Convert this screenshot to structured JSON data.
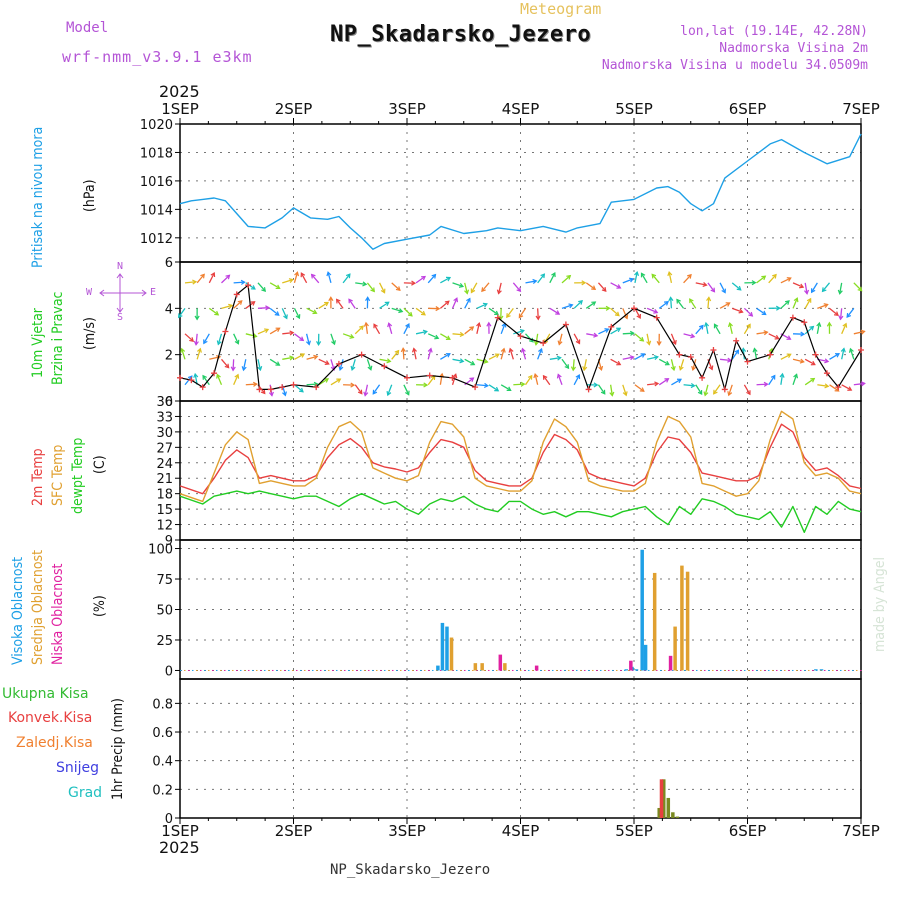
{
  "header": {
    "model_label": "Model",
    "model_name": "wrf-nmm_v3.9.1 e3km",
    "title": "NP_Skadarsko_Jezero",
    "subtitle": "Meteogram",
    "coords": "lon,lat (19.14E, 42.28N)",
    "elevation": "Nadmorska Visina 2m",
    "model_elevation": "Nadmorska Visina u modelu 34.0509m",
    "year_top": "2025",
    "year_bottom": "2025",
    "footer": "NP_Skadarsko_Jezero",
    "watermark": "made by Angel"
  },
  "colors": {
    "pressure": "#1ea0e6",
    "temp2m": "#e84040",
    "sfc_temp": "#e0a030",
    "dewpt": "#22cc22",
    "high_cloud": "#1ea0e6",
    "mid_cloud": "#e0a030",
    "low_cloud": "#e020a0",
    "total_precip": "#33bb33",
    "conv_precip": "#e84040",
    "frozen_precip": "#f08030",
    "snow": "#4040e0",
    "graupel": "#20c0c0"
  },
  "chart_data": [
    {
      "id": "pressure",
      "type": "line",
      "ylabel_lines": [
        "Pritisak na nivou mora"
      ],
      "unit": "(hPa)",
      "ylim": [
        1010.3,
        1020
      ],
      "yticks": [
        1012,
        1014,
        1016,
        1018,
        1020
      ],
      "x_days": [
        0,
        0.1,
        0.2,
        0.3,
        0.4,
        0.5,
        0.6,
        0.75,
        0.9,
        1.0,
        1.15,
        1.3,
        1.4,
        1.5,
        1.6,
        1.7,
        1.8,
        2.0,
        2.2,
        2.3,
        2.5,
        2.7,
        2.8,
        3.0,
        3.2,
        3.4,
        3.5,
        3.7,
        3.8,
        4.0,
        4.2,
        4.3,
        4.4,
        4.5,
        4.6,
        4.7,
        4.8,
        5.0,
        5.2,
        5.3,
        5.5,
        5.7,
        5.9,
        6.0
      ],
      "values": [
        1014.4,
        1014.6,
        1014.7,
        1014.8,
        1014.6,
        1013.7,
        1012.8,
        1012.7,
        1013.4,
        1014.1,
        1013.4,
        1013.3,
        1013.5,
        1012.7,
        1012.0,
        1011.2,
        1011.6,
        1011.9,
        1012.2,
        1012.8,
        1012.3,
        1012.5,
        1012.7,
        1012.5,
        1012.8,
        1012.4,
        1012.7,
        1013.0,
        1014.5,
        1014.7,
        1015.5,
        1015.6,
        1015.2,
        1014.4,
        1013.9,
        1014.4,
        1016.2,
        1017.4,
        1018.6,
        1018.9,
        1018.0,
        1017.2,
        1017.7,
        1019.3
      ]
    },
    {
      "id": "wind",
      "type": "line",
      "ylabel_lines": [
        "10m Vjetar",
        "Brzina i Pravac"
      ],
      "unit": "(m/s)",
      "ylim": [
        0,
        6
      ],
      "yticks": [
        0,
        2,
        4,
        6
      ],
      "compass": {
        "n": "N",
        "s": "S",
        "w": "W",
        "e": "E"
      },
      "x_days": [
        0,
        0.1,
        0.2,
        0.3,
        0.4,
        0.5,
        0.6,
        0.7,
        0.8,
        0.9,
        1.0,
        1.2,
        1.4,
        1.6,
        1.8,
        2.0,
        2.2,
        2.4,
        2.6,
        2.8,
        3.0,
        3.2,
        3.4,
        3.6,
        3.8,
        4.0,
        4.2,
        4.4,
        4.5,
        4.6,
        4.7,
        4.8,
        4.9,
        5.0,
        5.2,
        5.4,
        5.5,
        5.6,
        5.7,
        5.8,
        6.0
      ],
      "values": [
        1.0,
        0.9,
        0.6,
        1.2,
        3.0,
        4.6,
        5.0,
        0.5,
        0.5,
        0.6,
        0.7,
        0.6,
        1.6,
        2.0,
        1.5,
        1.0,
        1.1,
        1.0,
        0.6,
        3.6,
        2.8,
        2.5,
        3.3,
        0.5,
        3.2,
        4.0,
        3.6,
        2.0,
        1.9,
        1.0,
        2.2,
        0.5,
        2.6,
        1.7,
        2.0,
        3.6,
        3.4,
        2.0,
        1.2,
        0.6,
        2.2
      ],
      "direction_rows_ms": [
        0.7,
        1.8,
        2.9,
        4.0,
        5.1
      ],
      "arrows_per_row": 56
    },
    {
      "id": "temperature",
      "type": "line",
      "ylabel_lines": [
        "2m Temp",
        "SFC Temp",
        "dewpt Temp"
      ],
      "unit": "(C)",
      "ylim": [
        9,
        36
      ],
      "yticks": [
        9,
        12,
        15,
        18,
        21,
        24,
        27,
        30,
        33,
        36
      ],
      "x_days": [
        0,
        0.2,
        0.3,
        0.4,
        0.5,
        0.6,
        0.7,
        0.8,
        0.9,
        1.0,
        1.1,
        1.2,
        1.3,
        1.4,
        1.5,
        1.6,
        1.7,
        1.8,
        1.9,
        2.0,
        2.1,
        2.2,
        2.3,
        2.4,
        2.5,
        2.6,
        2.7,
        2.8,
        2.9,
        3.0,
        3.1,
        3.2,
        3.3,
        3.4,
        3.5,
        3.6,
        3.7,
        3.8,
        3.9,
        4.0,
        4.1,
        4.2,
        4.3,
        4.4,
        4.5,
        4.6,
        4.7,
        4.8,
        4.9,
        5.0,
        5.1,
        5.2,
        5.3,
        5.4,
        5.5,
        5.6,
        5.7,
        5.8,
        5.9,
        6.0
      ],
      "series": [
        {
          "name": "2m Temp",
          "color": "#e84040",
          "values": [
            19.5,
            18.0,
            21.0,
            24.5,
            26.5,
            25.0,
            21.0,
            21.5,
            21.0,
            20.5,
            20.5,
            21.5,
            25.0,
            27.5,
            28.7,
            27.0,
            24.0,
            23.2,
            22.8,
            22.2,
            23.0,
            26.0,
            28.5,
            28.0,
            27.0,
            22.5,
            20.5,
            20.0,
            19.5,
            19.5,
            21.0,
            26.0,
            29.5,
            28.5,
            26.5,
            22.0,
            21.0,
            20.5,
            20.0,
            19.5,
            21.0,
            26.0,
            29.0,
            28.5,
            26.0,
            22.0,
            21.5,
            21.0,
            20.5,
            20.5,
            21.5,
            27.0,
            31.5,
            30.0,
            25.0,
            22.5,
            23.0,
            21.5,
            19.5,
            19.0
          ]
        },
        {
          "name": "SFC Temp",
          "color": "#e0a030",
          "values": [
            18.0,
            16.5,
            22.0,
            27.5,
            30.0,
            28.5,
            20.0,
            20.5,
            20.0,
            19.5,
            19.5,
            21.0,
            27.0,
            31.0,
            32.0,
            30.0,
            23.0,
            22.0,
            21.0,
            20.5,
            21.5,
            28.0,
            32.0,
            31.5,
            29.0,
            21.0,
            19.5,
            19.0,
            18.5,
            18.5,
            20.5,
            28.0,
            32.5,
            31.0,
            28.0,
            20.5,
            19.5,
            19.0,
            18.5,
            18.5,
            20.0,
            28.0,
            33.0,
            32.0,
            29.0,
            20.0,
            19.5,
            18.5,
            17.5,
            18.0,
            20.5,
            28.5,
            34.0,
            32.5,
            24.0,
            21.5,
            22.0,
            21.0,
            18.5,
            18.0
          ]
        },
        {
          "name": "dewpt Temp",
          "color": "#22cc22",
          "values": [
            17.5,
            16.0,
            17.5,
            18.0,
            18.5,
            18.0,
            18.5,
            18.0,
            17.5,
            17.0,
            17.5,
            17.5,
            16.5,
            15.5,
            17.0,
            18.0,
            17.0,
            16.0,
            16.5,
            15.0,
            14.0,
            16.0,
            17.0,
            16.5,
            17.5,
            16.0,
            15.0,
            14.5,
            16.5,
            16.5,
            15.0,
            14.0,
            14.5,
            13.5,
            14.5,
            14.5,
            14.0,
            13.5,
            14.5,
            15.0,
            15.5,
            13.5,
            12.0,
            15.5,
            14.0,
            17.0,
            16.5,
            15.5,
            14.0,
            13.5,
            13.0,
            14.5,
            11.5,
            15.5,
            10.5,
            15.5,
            14.0,
            16.5,
            15.0,
            14.5
          ]
        }
      ]
    },
    {
      "id": "clouds",
      "type": "bar",
      "ylabel_lines": [
        "Visoka Oblacnost",
        "Srednja Oblacnost",
        "Niska Oblacnost"
      ],
      "unit": "(%)",
      "ylim": [
        -7,
        107
      ],
      "yticks": [
        0,
        25,
        50,
        75,
        100
      ],
      "series": [
        {
          "name": "Visoka Oblacnost",
          "color": "#1ea0e6",
          "x_days": [
            2.27,
            2.31,
            2.35,
            3.93,
            3.98,
            4.02,
            4.07,
            4.1,
            5.6,
            5.65
          ],
          "values": [
            4,
            39,
            36,
            1,
            3,
            1,
            99,
            21,
            1,
            1
          ]
        },
        {
          "name": "Srednja Oblacnost",
          "color": "#e0a030",
          "x_days": [
            2.39,
            2.6,
            2.66,
            2.86,
            4.18,
            4.36,
            4.42,
            4.47
          ],
          "values": [
            27,
            6,
            6,
            6,
            80,
            36,
            86,
            81
          ]
        },
        {
          "name": "Niska Oblacnost",
          "color": "#e020a0",
          "x_days": [
            2.82,
            3.14,
            3.97,
            4.32
          ],
          "values": [
            13,
            4,
            8,
            12
          ]
        }
      ]
    },
    {
      "id": "precip",
      "type": "bar",
      "ylabel_lines": [
        "1hr Precip (mm)"
      ],
      "unit": "",
      "ylim": [
        0,
        0.97
      ],
      "yticks": [
        0,
        0.2,
        0.4,
        0.6,
        0.8
      ],
      "legend": [
        "Ukupna Kisa",
        "Konvek.Kisa",
        "Zaledj.Kisa",
        "Snijeg",
        "Grad"
      ],
      "series": [
        {
          "name": "Ukupna Kisa",
          "color": "#7a8a20",
          "x_days": [
            4.22,
            4.26,
            4.3,
            4.34,
            4.38
          ],
          "values": [
            0.07,
            0.27,
            0.14,
            0.04,
            0.01
          ]
        },
        {
          "name": "Konvek.Kisa",
          "color": "#e84040",
          "x_days": [
            4.24
          ],
          "values": [
            0.27
          ]
        }
      ]
    }
  ],
  "x_axis": {
    "days": [
      "1SEP",
      "2SEP",
      "3SEP",
      "4SEP",
      "5SEP",
      "6SEP",
      "7SEP"
    ]
  }
}
